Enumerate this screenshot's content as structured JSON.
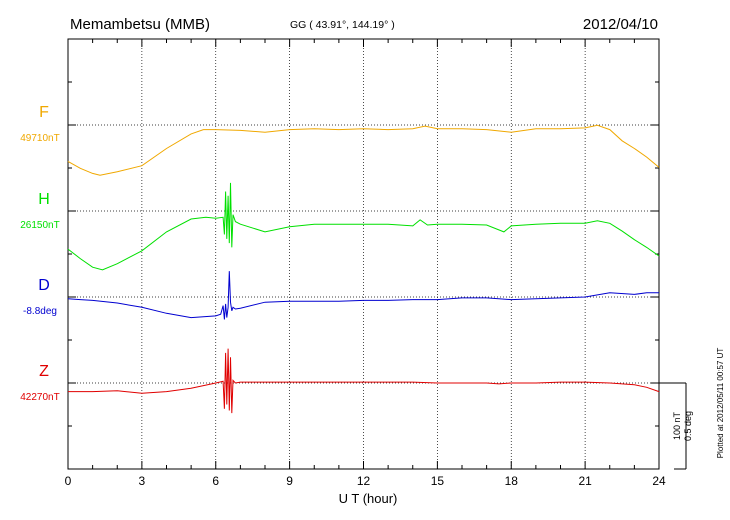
{
  "header": {
    "station": "Memambetsu (MMB)",
    "coords": "GG ( 43.91°, 144.19° )",
    "date": "2012/04/10"
  },
  "footer": {
    "plotted": "Plotted at 2012/05/11 00:57 UT",
    "scale_nt": "100 nT",
    "scale_deg": "0.5 deg"
  },
  "chart_data": {
    "type": "line",
    "xlabel": "U T (hour)",
    "xlim": [
      0,
      24
    ],
    "xticks": [
      "0",
      "3",
      "6",
      "9",
      "12",
      "15",
      "18",
      "21",
      "24"
    ],
    "grid": "dotted",
    "series": [
      {
        "name": "F",
        "baseline_label": "49710nT",
        "color": "#f0a800",
        "x": [
          0,
          0.5,
          1.0,
          1.3,
          2.0,
          3.0,
          4.0,
          5.0,
          5.5,
          6.0,
          7.0,
          8.0,
          9.0,
          10.0,
          11.0,
          12.0,
          13.0,
          14.0,
          14.5,
          15.0,
          16.0,
          17.0,
          18.0,
          19.0,
          20.0,
          21.0,
          21.5,
          22.0,
          22.5,
          23.0,
          23.5,
          24.0
        ],
        "y": [
          10,
          2,
          -4,
          -6,
          -2,
          5,
          25,
          42,
          47,
          47,
          46,
          44,
          47,
          48,
          47,
          48,
          47,
          48,
          51,
          48,
          48,
          47,
          44,
          48,
          48,
          49,
          52,
          47,
          34,
          25,
          15,
          3
        ]
      },
      {
        "name": "H",
        "baseline_label": "26150nT",
        "color": "#00e000",
        "x": [
          0,
          0.5,
          1.0,
          1.4,
          2.0,
          3.0,
          4.0,
          5.0,
          5.6,
          6.0,
          6.3,
          6.35,
          6.4,
          6.45,
          6.5,
          6.55,
          6.6,
          6.65,
          6.7,
          6.8,
          7.0,
          8.0,
          9.0,
          10.0,
          11.0,
          12.0,
          13.0,
          14.0,
          14.3,
          14.6,
          15.0,
          16.0,
          17.0,
          17.7,
          18.0,
          19.0,
          20.0,
          21.0,
          21.5,
          22.0,
          22.5,
          23.0,
          23.5,
          24.0
        ],
        "y": [
          8,
          -3,
          -13,
          -16,
          -9,
          6,
          28,
          43,
          45,
          44,
          45,
          25,
          75,
          20,
          70,
          15,
          85,
          10,
          48,
          40,
          37,
          28,
          34,
          37,
          37,
          37,
          37,
          35,
          42,
          36,
          37,
          37,
          36,
          28,
          35,
          37,
          38,
          38,
          41,
          38,
          29,
          19,
          10,
          0
        ]
      },
      {
        "name": "D",
        "baseline_label": "-8.8deg",
        "color": "#0000d0",
        "x": [
          0,
          0.5,
          1.0,
          2.0,
          3.0,
          4.0,
          5.0,
          6.0,
          6.2,
          6.3,
          6.35,
          6.4,
          6.45,
          6.5,
          6.55,
          6.6,
          6.65,
          6.7,
          6.8,
          7.0,
          8.0,
          9.0,
          10.0,
          11.0,
          12.0,
          13.0,
          14.0,
          15.0,
          16.0,
          17.0,
          18.0,
          19.0,
          20.0,
          21.0,
          22.0,
          23.0,
          23.5,
          24.0
        ],
        "y": [
          -2,
          -3,
          -4,
          -7,
          -12,
          -19,
          -24,
          -22,
          -20,
          -10,
          -26,
          -8,
          -24,
          -12,
          30,
          -6,
          -16,
          -12,
          -14,
          -13,
          -6,
          -5,
          -5,
          -5,
          -4,
          -4,
          -3,
          -3,
          -1,
          -1,
          -3,
          -2,
          -1,
          0,
          5,
          3,
          5,
          5
        ]
      },
      {
        "name": "Z",
        "baseline_label": "42270nT",
        "color": "#e00000",
        "x": [
          0,
          1.0,
          2.0,
          3.0,
          4.0,
          5.0,
          6.0,
          6.3,
          6.35,
          6.4,
          6.45,
          6.5,
          6.55,
          6.6,
          6.65,
          6.7,
          6.8,
          7.0,
          8.0,
          9.0,
          10.0,
          11.0,
          12.0,
          13.0,
          14.0,
          15.0,
          16.0,
          17.0,
          17.5,
          18.0,
          19.0,
          20.0,
          21.0,
          22.0,
          23.0,
          23.5,
          24.0
        ],
        "y": [
          -10,
          -10,
          -9,
          -12,
          -10,
          -6,
          0,
          2,
          -30,
          35,
          -25,
          40,
          -32,
          30,
          -35,
          3,
          0,
          1,
          1,
          1,
          1,
          1,
          1,
          1,
          1,
          0,
          0,
          0,
          -1,
          0,
          0,
          1,
          1,
          0,
          -2,
          -5,
          -10
        ]
      }
    ]
  }
}
